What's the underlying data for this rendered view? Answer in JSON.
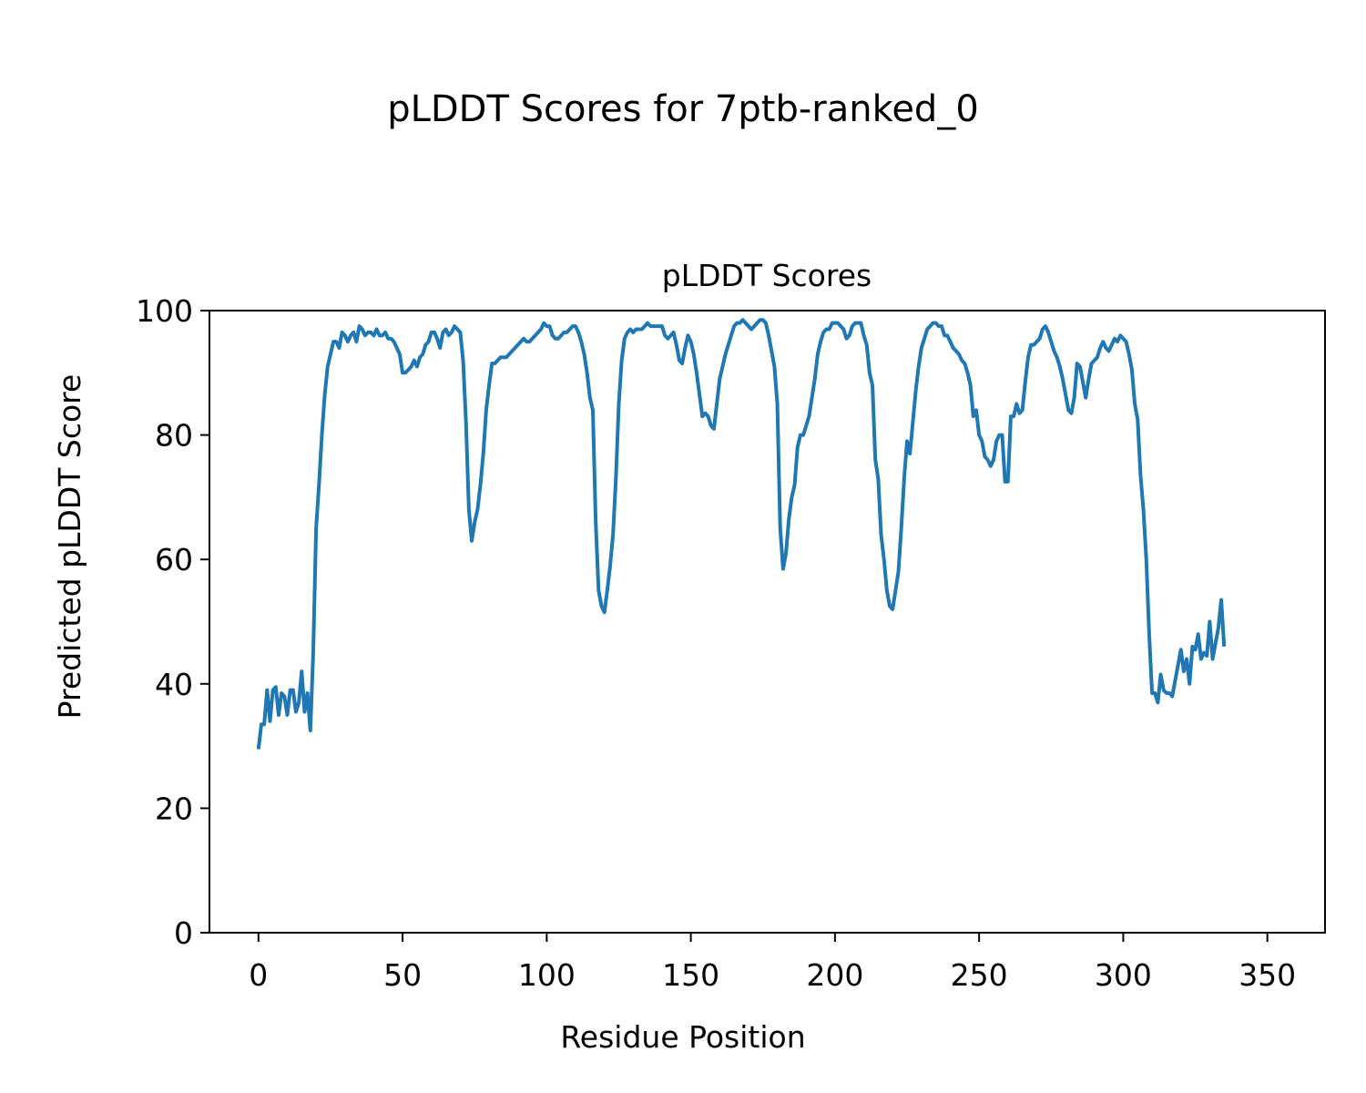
{
  "figure_title": "pLDDT Scores for 7ptb-ranked_0",
  "chart_data": {
    "type": "line",
    "title": "pLDDT Scores",
    "xlabel": "Residue Position",
    "ylabel": "Predicted pLDDT Score",
    "xlim": [
      -17,
      370
    ],
    "ylim": [
      0,
      100
    ],
    "xticks": [
      0,
      50,
      100,
      150,
      200,
      250,
      300,
      350
    ],
    "yticks": [
      0,
      20,
      40,
      60,
      80,
      100
    ],
    "grid": false,
    "series_color": "#1f77b4",
    "series": [
      {
        "values": [
          29.5,
          33.5,
          33.5,
          39.0,
          34.0,
          39.0,
          39.5,
          35.0,
          38.5,
          38.0,
          35.0,
          39.0,
          39.0,
          35.5,
          37.0,
          42.0,
          35.5,
          38.5,
          32.5,
          45.0,
          65.0,
          72.0,
          80.0,
          86.5,
          91.0,
          93.0,
          95.0,
          95.0,
          94.0,
          96.5,
          96.0,
          95.0,
          96.0,
          96.5,
          95.0,
          97.5,
          97.0,
          96.0,
          96.5,
          96.5,
          96.0,
          97.0,
          96.0,
          96.0,
          96.5,
          95.5,
          95.5,
          95.0,
          94.0,
          93.0,
          90.0,
          90.0,
          90.5,
          91.0,
          92.0,
          91.0,
          92.5,
          93.0,
          94.5,
          95.0,
          96.5,
          96.5,
          95.5,
          94.0,
          96.5,
          97.0,
          96.0,
          96.5,
          97.5,
          97.0,
          96.5,
          92.0,
          82.0,
          68.0,
          63.0,
          66.0,
          68.0,
          72.0,
          77.0,
          84.0,
          88.0,
          91.5,
          91.5,
          92.0,
          92.5,
          92.5,
          92.5,
          93.0,
          93.5,
          94.0,
          94.5,
          95.0,
          95.5,
          95.0,
          95.0,
          95.5,
          96.0,
          96.5,
          97.0,
          98.0,
          97.5,
          97.5,
          96.0,
          95.5,
          95.5,
          96.0,
          96.5,
          96.5,
          97.0,
          97.5,
          97.5,
          96.5,
          95.0,
          93.0,
          90.0,
          86.0,
          84.0,
          66.0,
          55.0,
          52.5,
          51.5,
          55.0,
          59.0,
          64.0,
          73.0,
          85.0,
          92.0,
          95.5,
          96.5,
          97.0,
          96.5,
          97.0,
          97.0,
          97.0,
          97.5,
          98.0,
          97.5,
          97.5,
          97.5,
          97.5,
          97.5,
          96.0,
          95.5,
          96.0,
          96.5,
          94.5,
          92.0,
          91.5,
          94.0,
          96.0,
          95.0,
          93.0,
          90.0,
          86.5,
          83.0,
          83.5,
          83.0,
          81.5,
          81.0,
          85.0,
          89.0,
          91.0,
          93.0,
          94.5,
          96.0,
          97.5,
          98.0,
          98.0,
          98.5,
          98.0,
          97.5,
          97.0,
          97.5,
          98.0,
          98.5,
          98.5,
          98.0,
          96.0,
          93.5,
          91.0,
          85.0,
          65.0,
          58.5,
          61.0,
          66.5,
          70.0,
          72.0,
          78.0,
          80.0,
          80.0,
          81.5,
          83.0,
          86.0,
          89.0,
          93.0,
          95.0,
          96.5,
          97.0,
          97.0,
          98.0,
          98.0,
          98.0,
          97.5,
          97.0,
          95.5,
          96.0,
          97.5,
          98.0,
          98.0,
          98.0,
          96.0,
          94.5,
          90.0,
          88.0,
          76.0,
          73.0,
          64.0,
          60.0,
          55.0,
          52.5,
          52.0,
          55.0,
          58.0,
          65.0,
          73.0,
          79.0,
          77.0,
          82.0,
          87.0,
          91.0,
          94.0,
          95.5,
          97.0,
          97.5,
          98.0,
          98.0,
          97.5,
          97.5,
          96.0,
          96.0,
          95.0,
          94.0,
          93.5,
          93.0,
          92.0,
          91.5,
          90.0,
          88.0,
          83.0,
          84.0,
          80.0,
          79.0,
          76.5,
          76.0,
          75.0,
          76.0,
          79.0,
          80.0,
          80.0,
          72.5,
          72.5,
          83.0,
          83.0,
          85.0,
          83.5,
          84.0,
          88.5,
          92.5,
          94.5,
          94.5,
          95.0,
          95.5,
          97.0,
          97.5,
          96.5,
          95.0,
          93.5,
          92.5,
          91.0,
          89.0,
          86.5,
          84.0,
          83.5,
          86.0,
          91.5,
          91.0,
          88.5,
          86.0,
          89.0,
          91.5,
          92.0,
          92.5,
          94.0,
          95.0,
          94.0,
          93.5,
          94.5,
          95.5,
          95.0,
          96.0,
          95.5,
          95.0,
          93.0,
          90.5,
          85.0,
          82.5,
          73.5,
          68.0,
          60.0,
          48.0,
          38.5,
          38.5,
          37.0,
          41.5,
          39.0,
          38.5,
          38.5,
          38.0,
          40.5,
          43.0,
          45.5,
          42.0,
          44.0,
          40.0,
          46.0,
          45.5,
          48.0,
          44.0,
          45.0,
          44.5,
          50.0,
          44.0,
          46.5,
          49.0,
          53.5,
          46.0
        ]
      }
    ]
  }
}
